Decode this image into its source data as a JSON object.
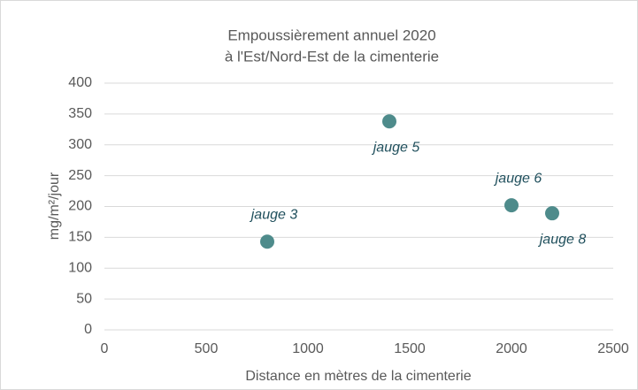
{
  "chart_data": {
    "type": "scatter",
    "title": [
      "Empoussièrement annuel 2020",
      "à l'Est/Nord-Est de la cimenterie"
    ],
    "xlabel": "Distance en mètres de la cimenterie",
    "ylabel": "mg/m²/jour",
    "x": [
      800,
      1400,
      2000,
      2200
    ],
    "values": [
      143,
      338,
      202,
      189
    ],
    "labels": [
      "jauge 3",
      "jauge 5",
      "jauge 6",
      "jauge 8"
    ],
    "color": "#4e8b8b",
    "xlim": [
      0,
      2500
    ],
    "xticks": [
      0,
      500,
      1000,
      1500,
      2000,
      2500
    ],
    "ylim": [
      0,
      400
    ],
    "yticks": [
      0,
      50,
      100,
      150,
      200,
      250,
      300,
      350,
      400
    ],
    "grid": true
  }
}
